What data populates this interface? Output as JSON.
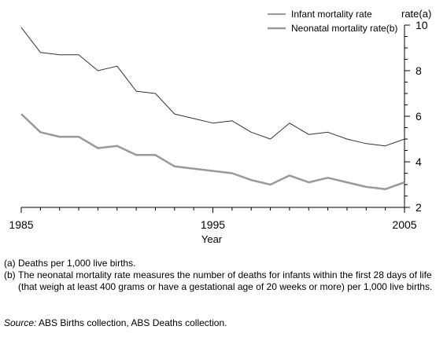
{
  "chart_data": {
    "type": "line",
    "x": [
      1985,
      1986,
      1987,
      1988,
      1989,
      1990,
      1991,
      1992,
      1993,
      1994,
      1995,
      1996,
      1997,
      1998,
      1999,
      2000,
      2001,
      2002,
      2003,
      2004,
      2005
    ],
    "series": [
      {
        "name": "Infant mortality rate",
        "values": [
          9.9,
          8.8,
          8.7,
          8.7,
          8.0,
          8.2,
          7.1,
          7.0,
          6.1,
          5.9,
          5.7,
          5.8,
          5.3,
          5.0,
          5.7,
          5.2,
          5.3,
          5.0,
          4.8,
          4.7,
          5.0
        ],
        "color": "#333333"
      },
      {
        "name": "Neonatal mortality rate(b)",
        "values": [
          6.1,
          5.3,
          5.1,
          5.1,
          4.6,
          4.7,
          4.3,
          4.3,
          3.8,
          3.7,
          3.6,
          3.5,
          3.2,
          3.0,
          3.4,
          3.1,
          3.3,
          3.1,
          2.9,
          2.8,
          3.1
        ],
        "color": "#999999"
      }
    ],
    "xlabel": "Year",
    "ylabel": "rate(a)",
    "xlim": [
      1985,
      2005
    ],
    "ylim": [
      2,
      10
    ],
    "x_ticks": [
      "1985",
      "1995",
      "2005"
    ],
    "y_ticks": [
      "2",
      "4",
      "6",
      "8",
      "10"
    ],
    "y_axis_side": "right",
    "legend_placement": "top-right",
    "grid": false
  },
  "footnotes": [
    {
      "tag": "(a)",
      "text": "Deaths per 1,000 live births."
    },
    {
      "tag": "(b)",
      "text": "The neonatal mortality rate measures the number of deaths for infants within the first 28 days of life (that weigh at least 400 grams or have a gestational age of 20 weeks or more) per 1,000 live births."
    }
  ],
  "source": {
    "label": "Source:",
    "text": " ABS Births collection, ABS Deaths collection."
  }
}
